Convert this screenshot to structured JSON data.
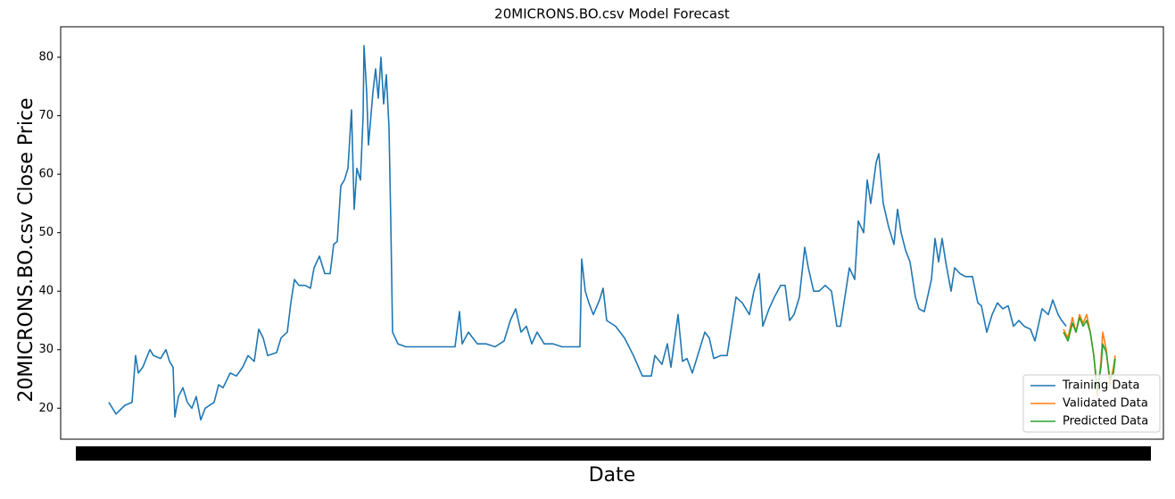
{
  "chart_data": {
    "type": "line",
    "title": "20MICRONS.BO.csv Model Forecast",
    "x_label": "Date",
    "y_label": "20MICRONS.BO.csv Close Price",
    "xlim": [
      -32,
      1204
    ],
    "ylim": [
      14.7,
      85.2
    ],
    "yticks": [
      20,
      30,
      40,
      50,
      60,
      70,
      80
    ],
    "grid": false,
    "legend": "lower right",
    "series": [
      {
        "name": "Training Data",
        "color": "#1f77b4",
        "x": [
          22,
          30,
          40,
          48,
          50,
          52,
          55,
          60,
          68,
          72,
          80,
          86,
          90,
          94,
          96,
          100,
          105,
          110,
          115,
          120,
          125,
          130,
          140,
          145,
          150,
          158,
          165,
          172,
          178,
          185,
          190,
          195,
          200,
          210,
          215,
          222,
          226,
          230,
          235,
          242,
          248,
          252,
          258,
          264,
          270,
          274,
          278,
          282,
          286,
          290,
          294,
          297,
          300,
          304,
          307,
          308,
          311,
          313,
          318,
          321,
          324,
          327,
          330,
          333,
          336,
          338,
          340,
          343,
          346,
          355,
          370,
          390,
          410,
          415,
          418,
          425,
          435,
          445,
          455,
          465,
          472,
          478,
          484,
          490,
          496,
          502,
          510,
          520,
          530,
          540,
          550,
          552,
          556,
          560,
          565,
          572,
          576,
          580,
          590,
          600,
          610,
          620,
          630,
          634,
          642,
          648,
          652,
          660,
          665,
          670,
          676,
          682,
          686,
          690,
          695,
          700,
          708,
          715,
          725,
          732,
          740,
          745,
          751,
          755,
          762,
          768,
          775,
          780,
          785,
          790,
          796,
          802,
          806,
          812,
          818,
          825,
          832,
          838,
          842,
          848,
          852,
          858,
          862,
          868,
          872,
          876,
          882,
          885,
          890,
          896,
          902,
          906,
          910,
          915,
          920,
          926,
          930,
          936,
          944,
          948,
          952,
          956,
          960,
          966,
          970,
          976,
          982,
          990,
          996,
          1000,
          1006,
          1012,
          1018,
          1024,
          1030,
          1036,
          1042,
          1048,
          1055,
          1060,
          1068,
          1075,
          1080,
          1086,
          1090,
          1095
        ],
        "values": [
          21,
          19,
          20.5,
          21,
          25,
          29,
          26,
          27,
          30,
          29,
          28.5,
          30,
          28,
          27,
          18.5,
          22,
          23.5,
          21,
          20,
          22,
          18,
          20,
          21,
          24,
          23.5,
          26,
          25.5,
          27,
          29,
          28,
          33.5,
          32,
          29,
          29.5,
          32,
          33,
          38,
          42,
          41,
          41,
          40.5,
          44,
          46,
          43,
          43,
          48,
          48.5,
          58,
          59,
          61,
          71,
          54,
          61,
          59,
          70,
          82,
          74,
          65,
          74,
          78,
          73,
          80,
          72,
          77,
          68,
          52,
          33,
          32,
          31,
          30.5,
          30.5,
          30.5,
          30.5,
          36.5,
          31,
          33,
          31,
          31,
          30.5,
          31.5,
          35,
          37,
          33,
          34,
          31,
          33,
          31,
          31,
          30.5,
          30.5,
          30.5,
          45.5,
          40,
          38,
          36,
          38.5,
          40.5,
          35,
          34,
          32,
          29,
          25.5,
          25.5,
          29,
          27.5,
          31,
          27,
          36,
          28,
          28.5,
          26,
          29,
          31,
          33,
          32,
          28.5,
          29,
          29,
          39,
          38,
          36,
          40,
          43,
          34,
          37,
          39,
          41,
          41,
          35,
          36,
          39,
          47.5,
          44,
          40,
          40,
          41,
          40,
          34,
          34,
          40,
          44,
          42,
          52,
          50,
          59,
          55,
          62,
          63.5,
          55,
          51,
          48,
          54,
          50,
          47,
          45,
          39,
          37,
          36.5,
          42,
          49,
          45,
          49,
          45,
          40,
          44,
          43,
          42.5,
          42.5,
          38,
          37.5,
          33,
          36,
          38,
          37,
          37.5,
          34,
          35,
          34,
          33.5,
          31.5,
          37,
          36,
          38.5,
          36,
          35,
          34
        ]
      },
      {
        "name": "Validated Data",
        "color": "#ff7f0e",
        "x": [
          1092,
          1097,
          1102,
          1106,
          1110,
          1114,
          1118,
          1122,
          1126,
          1130,
          1134,
          1136,
          1140,
          1144,
          1148,
          1150
        ],
        "values": [
          33.5,
          32,
          35.5,
          33,
          36,
          34.5,
          36,
          33,
          29,
          22,
          28,
          33,
          30,
          24,
          27,
          29
        ]
      },
      {
        "name": "Predicted Data",
        "color": "#2ca02c",
        "x": [
          1092,
          1097,
          1102,
          1106,
          1110,
          1114,
          1118,
          1122,
          1126,
          1130,
          1134,
          1136,
          1140,
          1144,
          1148,
          1150
        ],
        "values": [
          33,
          31.5,
          34.5,
          33,
          35.5,
          34,
          35,
          33,
          29,
          23,
          27,
          31,
          29.5,
          25,
          26,
          28.5
        ]
      }
    ]
  }
}
